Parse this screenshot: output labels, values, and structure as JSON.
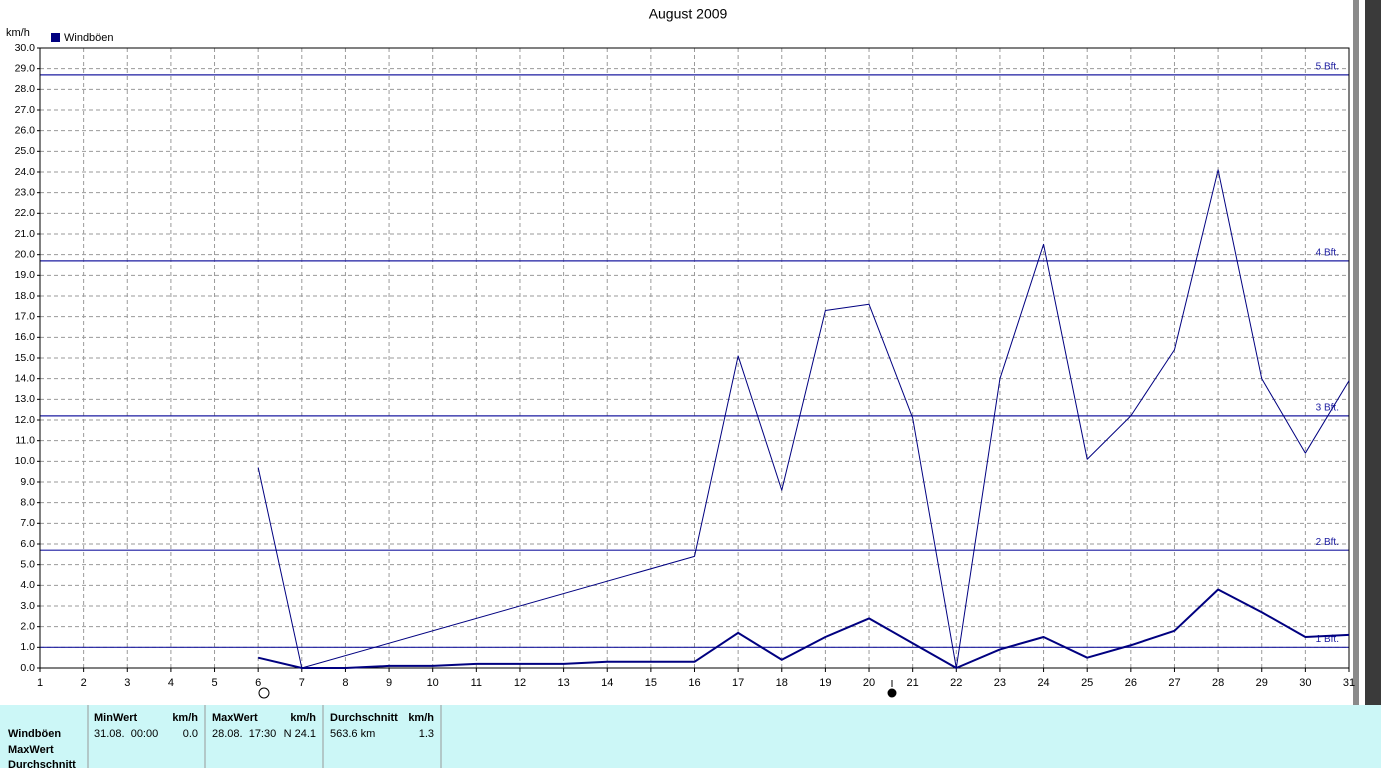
{
  "chart_data": {
    "type": "line",
    "title": "August 2009",
    "y_label": "km/h",
    "legend": "Windböen",
    "legend_color": "#000080",
    "legend_position": "top-left",
    "x": [
      1,
      2,
      3,
      4,
      5,
      6,
      7,
      8,
      9,
      10,
      11,
      12,
      13,
      14,
      15,
      16,
      17,
      18,
      19,
      20,
      21,
      22,
      23,
      24,
      25,
      26,
      27,
      28,
      29,
      30,
      31
    ],
    "xlim": [
      1,
      31
    ],
    "xticks": [
      1,
      2,
      3,
      4,
      5,
      6,
      7,
      8,
      9,
      10,
      11,
      12,
      13,
      14,
      15,
      16,
      17,
      18,
      19,
      20,
      21,
      22,
      23,
      24,
      25,
      26,
      27,
      28,
      29,
      30,
      31
    ],
    "ylim": [
      0,
      30
    ],
    "yticks": [
      {
        "value": 0,
        "label": "0.0"
      },
      {
        "value": 1,
        "label": "1.0"
      },
      {
        "value": 2,
        "label": "2.0"
      },
      {
        "value": 3,
        "label": "3.0"
      },
      {
        "value": 4,
        "label": "4.0"
      },
      {
        "value": 5,
        "label": "5.0"
      },
      {
        "value": 6,
        "label": "6.0"
      },
      {
        "value": 7,
        "label": "7.0"
      },
      {
        "value": 8,
        "label": "8.0"
      },
      {
        "value": 9,
        "label": "9.0"
      },
      {
        "value": 10,
        "label": "10.0"
      },
      {
        "value": 11,
        "label": "11.0"
      },
      {
        "value": 12,
        "label": "12.0"
      },
      {
        "value": 13,
        "label": "13.0"
      },
      {
        "value": 14,
        "label": "14.0"
      },
      {
        "value": 15,
        "label": "15.0"
      },
      {
        "value": 16,
        "label": "16.0"
      },
      {
        "value": 17,
        "label": "17.0"
      },
      {
        "value": 18,
        "label": "18.0"
      },
      {
        "value": 19,
        "label": "19.0"
      },
      {
        "value": 20,
        "label": "20.0"
      },
      {
        "value": 21,
        "label": "21.0"
      },
      {
        "value": 22,
        "label": "22.0"
      },
      {
        "value": 23,
        "label": "23.0"
      },
      {
        "value": 24,
        "label": "24.0"
      },
      {
        "value": 25,
        "label": "25.0"
      },
      {
        "value": 26,
        "label": "26.0"
      },
      {
        "value": 27,
        "label": "27.0"
      },
      {
        "value": 28,
        "label": "28.0"
      },
      {
        "value": 29,
        "label": "29.0"
      },
      {
        "value": 30,
        "label": "30.0"
      }
    ],
    "grid": true,
    "series": [
      {
        "color": "#000080",
        "width": 1,
        "x": [
          6,
          7,
          16,
          17,
          18,
          19,
          20,
          21,
          22,
          23,
          24,
          25,
          26,
          27,
          28,
          29,
          30,
          31
        ],
        "values": [
          9.7,
          0.0,
          5.4,
          15.1,
          8.6,
          17.3,
          17.6,
          12.1,
          0.0,
          14.0,
          20.5,
          10.1,
          12.2,
          15.4,
          24.1,
          14.0,
          10.4,
          13.9
        ]
      },
      {
        "color": "#000080",
        "width": 2,
        "x": [
          6,
          7,
          8,
          9,
          10,
          11,
          12,
          13,
          14,
          15,
          16,
          17,
          18,
          19,
          20,
          21,
          22,
          23,
          24,
          25,
          26,
          27,
          28,
          29,
          30,
          31
        ],
        "values": [
          0.5,
          0.0,
          0.0,
          0.1,
          0.1,
          0.2,
          0.2,
          0.2,
          0.3,
          0.3,
          0.3,
          1.7,
          0.4,
          1.5,
          2.4,
          1.2,
          0.0,
          0.9,
          1.5,
          0.5,
          1.1,
          1.8,
          3.8,
          2.7,
          1.5,
          1.6
        ]
      }
    ],
    "reference_lines": [
      {
        "value": 1.0,
        "label": "1 Bft."
      },
      {
        "value": 5.7,
        "label": "2 Bft."
      },
      {
        "value": 12.2,
        "label": "3 Bft."
      },
      {
        "value": 19.7,
        "label": "4 Bft."
      },
      {
        "value": 28.7,
        "label": "5 Bft."
      }
    ],
    "reference_color": "#1c1ca0"
  },
  "stats": {
    "row_labels": [
      "Windböen",
      "MaxWert",
      "Durchschnitt"
    ],
    "columns": [
      {
        "header": "MinWert",
        "unit": "km/h",
        "when": "31.08.  00:00",
        "value": "0.0"
      },
      {
        "header": "MaxWert",
        "unit": "km/h",
        "when": "28.08.  17:30",
        "value": "N 24.1"
      },
      {
        "header": "Durchschnitt",
        "unit": "km/h",
        "when": "563.6 km",
        "value": "1.3"
      }
    ]
  }
}
